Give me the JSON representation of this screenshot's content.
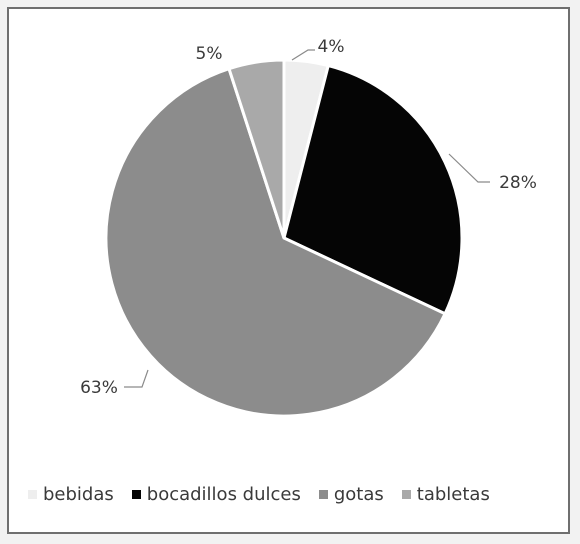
{
  "chart_data": {
    "type": "pie",
    "title": "",
    "slices": [
      {
        "label": "bebidas",
        "value": 4,
        "label_text": "4%",
        "color": "#eeeeee"
      },
      {
        "label": "bocadillos dulces",
        "value": 28,
        "label_text": "28%",
        "color": "#050505"
      },
      {
        "label": "gotas",
        "value": 63,
        "label_text": "63%",
        "color": "#8c8c8c"
      },
      {
        "label": "tabletas",
        "value": 5,
        "label_text": "5%",
        "color": "#a9a9a9"
      }
    ],
    "legend_position": "bottom",
    "start_angle": "12 o'clock",
    "direction": "clockwise"
  }
}
